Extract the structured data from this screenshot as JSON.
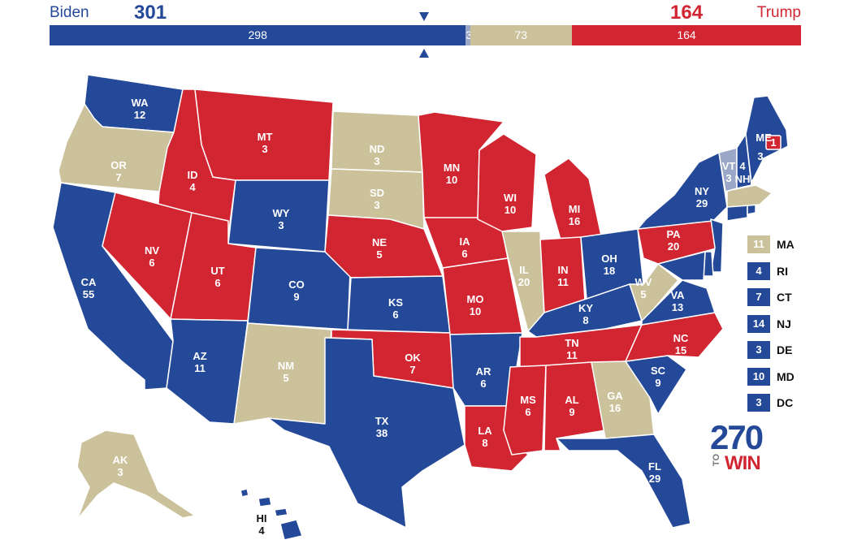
{
  "header": {
    "biden_label": "Biden",
    "biden_total": "301",
    "trump_label": "Trump",
    "trump_total": "164"
  },
  "bar": [
    {
      "key": "biden_solid",
      "label": "298",
      "value": 298,
      "color": "#244999"
    },
    {
      "key": "biden_lean",
      "label": "3",
      "value": 3,
      "color": "#9aa7c6"
    },
    {
      "key": "tossup",
      "label": "73",
      "value": 73,
      "color": "#cbc29c"
    },
    {
      "key": "trump_solid",
      "label": "164",
      "value": 164,
      "color": "#d22532"
    }
  ],
  "colors": {
    "dem": "#244999",
    "rep": "#d22532",
    "tossup": "#cbc29c",
    "lean_dem": "#9aa7c6"
  },
  "states": [
    {
      "abbr": "WA",
      "votes": "12",
      "status": "dem"
    },
    {
      "abbr": "OR",
      "votes": "7",
      "status": "tossup"
    },
    {
      "abbr": "CA",
      "votes": "55",
      "status": "dem"
    },
    {
      "abbr": "ID",
      "votes": "4",
      "status": "rep"
    },
    {
      "abbr": "NV",
      "votes": "6",
      "status": "rep"
    },
    {
      "abbr": "MT",
      "votes": "3",
      "status": "rep"
    },
    {
      "abbr": "WY",
      "votes": "3",
      "status": "dem"
    },
    {
      "abbr": "UT",
      "votes": "6",
      "status": "rep"
    },
    {
      "abbr": "AZ",
      "votes": "11",
      "status": "dem"
    },
    {
      "abbr": "CO",
      "votes": "9",
      "status": "dem"
    },
    {
      "abbr": "NM",
      "votes": "5",
      "status": "tossup"
    },
    {
      "abbr": "ND",
      "votes": "3",
      "status": "tossup"
    },
    {
      "abbr": "SD",
      "votes": "3",
      "status": "tossup"
    },
    {
      "abbr": "NE",
      "votes": "5",
      "status": "rep"
    },
    {
      "abbr": "KS",
      "votes": "6",
      "status": "dem"
    },
    {
      "abbr": "OK",
      "votes": "7",
      "status": "rep"
    },
    {
      "abbr": "TX",
      "votes": "38",
      "status": "dem"
    },
    {
      "abbr": "MN",
      "votes": "10",
      "status": "rep"
    },
    {
      "abbr": "IA",
      "votes": "6",
      "status": "rep"
    },
    {
      "abbr": "MO",
      "votes": "10",
      "status": "rep"
    },
    {
      "abbr": "AR",
      "votes": "6",
      "status": "dem"
    },
    {
      "abbr": "LA",
      "votes": "8",
      "status": "rep"
    },
    {
      "abbr": "WI",
      "votes": "10",
      "status": "rep"
    },
    {
      "abbr": "IL",
      "votes": "20",
      "status": "tossup"
    },
    {
      "abbr": "MI",
      "votes": "16",
      "status": "rep"
    },
    {
      "abbr": "IN",
      "votes": "11",
      "status": "rep"
    },
    {
      "abbr": "OH",
      "votes": "18",
      "status": "dem"
    },
    {
      "abbr": "KY",
      "votes": "8",
      "status": "dem"
    },
    {
      "abbr": "TN",
      "votes": "11",
      "status": "rep"
    },
    {
      "abbr": "MS",
      "votes": "6",
      "status": "rep"
    },
    {
      "abbr": "AL",
      "votes": "9",
      "status": "rep"
    },
    {
      "abbr": "GA",
      "votes": "16",
      "status": "tossup"
    },
    {
      "abbr": "FL",
      "votes": "29",
      "status": "dem"
    },
    {
      "abbr": "SC",
      "votes": "9",
      "status": "dem"
    },
    {
      "abbr": "NC",
      "votes": "15",
      "status": "rep"
    },
    {
      "abbr": "VA",
      "votes": "13",
      "status": "dem"
    },
    {
      "abbr": "WV",
      "votes": "5",
      "status": "tossup"
    },
    {
      "abbr": "PA",
      "votes": "20",
      "status": "rep"
    },
    {
      "abbr": "NY",
      "votes": "29",
      "status": "dem"
    },
    {
      "abbr": "VT",
      "votes": "3",
      "status": "lean_dem"
    },
    {
      "abbr": "NH",
      "votes": "4",
      "status": "dem"
    },
    {
      "abbr": "ME",
      "votes": "3",
      "status": "dem"
    },
    {
      "abbr": "ME-CD2",
      "votes": "1",
      "status": "rep"
    },
    {
      "abbr": "AK",
      "votes": "3",
      "status": "tossup"
    },
    {
      "abbr": "HI",
      "votes": "4",
      "status": "dem"
    }
  ],
  "small_states": [
    {
      "votes": "11",
      "abbr": "MA",
      "status": "tossup"
    },
    {
      "votes": "4",
      "abbr": "RI",
      "status": "dem"
    },
    {
      "votes": "7",
      "abbr": "CT",
      "status": "dem"
    },
    {
      "votes": "14",
      "abbr": "NJ",
      "status": "dem"
    },
    {
      "votes": "3",
      "abbr": "DE",
      "status": "dem"
    },
    {
      "votes": "10",
      "abbr": "MD",
      "status": "dem"
    },
    {
      "votes": "3",
      "abbr": "DC",
      "status": "dem"
    }
  ],
  "logo": {
    "number": "270",
    "to": "TO",
    "win": "WIN"
  }
}
